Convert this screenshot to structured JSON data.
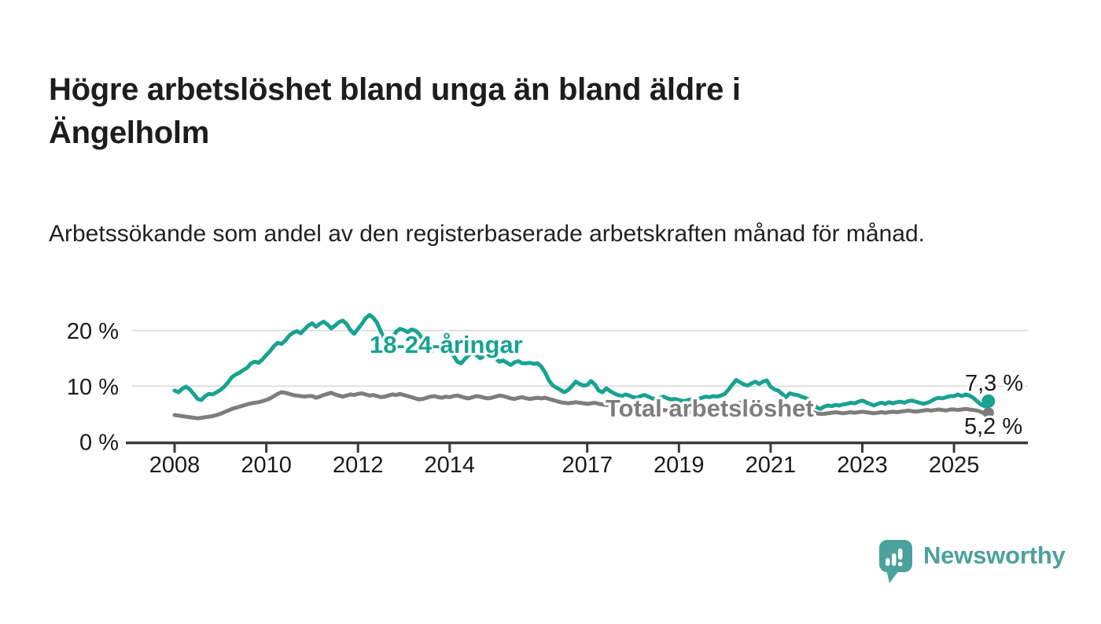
{
  "header": {
    "title": "Högre arbetslöshet bland unga än bland äldre i Ängelholm",
    "subtitle": "Arbetssökande som andel av den registerbaserade arbetskraften månad för månad."
  },
  "chart_data": {
    "type": "line",
    "title": "Högre arbetslöshet bland unga än bland äldre i Ängelholm",
    "subtitle": "Arbetssökande som andel av den registerbaserade arbetskraften månad för månad.",
    "unit": "%",
    "x": {
      "interval": "monthly",
      "start_year": 2008,
      "start_month": 1,
      "end_year": 2025,
      "end_month": 10
    },
    "x_ticks": [
      2008,
      2010,
      2012,
      2014,
      2017,
      2019,
      2021,
      2023,
      2025
    ],
    "y_ticks": [
      0,
      10,
      20
    ],
    "y_tick_labels": [
      "0 %",
      "10 %",
      "20 %"
    ],
    "ylim": [
      0,
      24
    ],
    "grid": "horizontal",
    "legend_position": "inline-labels",
    "series": [
      {
        "name": "Total arbetslöshet",
        "color": "#7d7d7d",
        "end_label": "5,2 %",
        "last_value": 5.2,
        "values": [
          4.8,
          4.7,
          4.6,
          4.5,
          4.4,
          4.3,
          4.2,
          4.3,
          4.4,
          4.5,
          4.6,
          4.8,
          5.0,
          5.3,
          5.6,
          5.9,
          6.1,
          6.3,
          6.5,
          6.7,
          6.9,
          7.0,
          7.1,
          7.3,
          7.5,
          7.8,
          8.2,
          8.6,
          8.9,
          8.8,
          8.6,
          8.4,
          8.3,
          8.2,
          8.1,
          8.2,
          8.2,
          7.9,
          8.1,
          8.4,
          8.6,
          8.8,
          8.5,
          8.3,
          8.1,
          8.3,
          8.5,
          8.4,
          8.6,
          8.7,
          8.5,
          8.3,
          8.4,
          8.2,
          8.0,
          8.1,
          8.3,
          8.5,
          8.4,
          8.6,
          8.4,
          8.2,
          8.0,
          7.8,
          7.6,
          7.7,
          7.9,
          8.1,
          8.2,
          8.0,
          7.9,
          8.1,
          8.0,
          8.2,
          8.3,
          8.1,
          7.9,
          7.8,
          8.0,
          8.2,
          8.1,
          7.9,
          7.8,
          7.9,
          8.1,
          8.3,
          8.2,
          8.0,
          7.8,
          7.7,
          7.9,
          8.0,
          7.8,
          7.7,
          7.8,
          7.9,
          7.8,
          7.9,
          7.7,
          7.5,
          7.3,
          7.1,
          7.0,
          6.9,
          7.0,
          7.1,
          7.0,
          6.9,
          6.8,
          6.9,
          7.0,
          6.8,
          6.7,
          6.6,
          6.7,
          6.8,
          6.7,
          6.6,
          6.5,
          6.4,
          6.3,
          6.2,
          6.1,
          6.0,
          5.9,
          5.8,
          5.8,
          5.7,
          5.7,
          5.6,
          5.6,
          5.5,
          5.5,
          5.4,
          5.4,
          5.3,
          5.3,
          5.4,
          5.4,
          5.5,
          5.5,
          5.6,
          5.6,
          5.7,
          5.8,
          6.0,
          6.4,
          6.8,
          7.0,
          7.1,
          7.0,
          6.9,
          6.8,
          6.7,
          6.6,
          6.5,
          6.4,
          6.3,
          6.2,
          6.1,
          6.0,
          5.9,
          5.8,
          5.7,
          5.6,
          5.5,
          5.4,
          5.4,
          5.1,
          5.0,
          5.0,
          5.1,
          5.2,
          5.3,
          5.2,
          5.1,
          5.2,
          5.3,
          5.2,
          5.3,
          5.4,
          5.3,
          5.2,
          5.1,
          5.2,
          5.3,
          5.2,
          5.3,
          5.4,
          5.3,
          5.4,
          5.5,
          5.6,
          5.5,
          5.4,
          5.5,
          5.6,
          5.7,
          5.6,
          5.7,
          5.8,
          5.7,
          5.6,
          5.8,
          5.8,
          5.7,
          5.8,
          5.9,
          5.8,
          5.7,
          5.6,
          5.4,
          5.0,
          5.2
        ]
      },
      {
        "name": "18-24-åringar",
        "color": "#18a292",
        "end_label": "7,3 %",
        "last_value": 7.3,
        "values": [
          9.2,
          8.9,
          9.5,
          9.9,
          9.4,
          8.6,
          7.7,
          7.5,
          8.2,
          8.6,
          8.5,
          8.9,
          9.3,
          9.9,
          10.7,
          11.6,
          12.1,
          12.4,
          12.9,
          13.3,
          14.1,
          14.4,
          14.2,
          14.8,
          15.6,
          16.3,
          17.2,
          17.8,
          17.6,
          18.2,
          19.1,
          19.6,
          19.9,
          19.5,
          20.2,
          20.9,
          21.3,
          20.7,
          21.2,
          21.6,
          21.1,
          20.4,
          20.9,
          21.5,
          21.8,
          21.2,
          20.1,
          19.4,
          20.3,
          21.2,
          22.2,
          22.8,
          22.3,
          21.4,
          19.8,
          18.3,
          17.4,
          18.6,
          19.8,
          20.3,
          20.1,
          19.7,
          20.2,
          20.0,
          19.4,
          18.3,
          17.1,
          16.2,
          16.8,
          17.3,
          17.0,
          16.4,
          16.2,
          15.5,
          14.4,
          14.1,
          14.9,
          15.6,
          16.0,
          15.6,
          15.0,
          15.4,
          15.8,
          15.5,
          15.0,
          14.4,
          14.6,
          14.2,
          13.8,
          14.3,
          14.5,
          14.1,
          14.1,
          14.2,
          14.0,
          14.1,
          13.5,
          12.4,
          11.0,
          10.1,
          9.7,
          9.3,
          8.9,
          9.3,
          10.0,
          10.8,
          10.4,
          10.1,
          10.2,
          10.9,
          10.3,
          9.2,
          8.9,
          9.6,
          9.1,
          8.7,
          8.4,
          8.2,
          8.5,
          8.3,
          8.0,
          7.9,
          8.2,
          8.4,
          8.1,
          7.8,
          7.7,
          7.9,
          8.1,
          7.8,
          7.6,
          7.7,
          7.5,
          7.3,
          7.4,
          7.6,
          7.8,
          7.7,
          7.9,
          8.1,
          8.0,
          8.2,
          8.1,
          8.3,
          8.6,
          9.4,
          10.3,
          11.1,
          10.7,
          10.3,
          10.1,
          10.5,
          10.8,
          10.4,
          10.8,
          11.0,
          9.9,
          9.4,
          9.2,
          8.6,
          8.0,
          8.7,
          8.5,
          8.4,
          8.1,
          7.9,
          7.6,
          6.9,
          6.2,
          5.9,
          6.3,
          6.5,
          6.4,
          6.6,
          6.5,
          6.7,
          6.8,
          7.0,
          6.9,
          7.2,
          7.4,
          7.1,
          6.8,
          6.5,
          6.8,
          7.0,
          6.8,
          7.1,
          6.9,
          7.1,
          7.2,
          7.0,
          7.3,
          7.4,
          7.2,
          7.0,
          6.8,
          7.0,
          7.3,
          7.7,
          7.9,
          7.8,
          8.0,
          8.2,
          8.2,
          8.5,
          8.2,
          8.5,
          8.3,
          7.9,
          7.3,
          6.7,
          6.4,
          7.3
        ]
      }
    ]
  },
  "footer": {
    "brand": "Newsworthy"
  },
  "colors": {
    "accent_teal": "#18a292",
    "series_gray": "#7d7d7d",
    "logo_teal": "#4ba19c",
    "axis": "#3a3a3a",
    "grid": "#d9d9d9",
    "text": "#1a1a1a"
  }
}
